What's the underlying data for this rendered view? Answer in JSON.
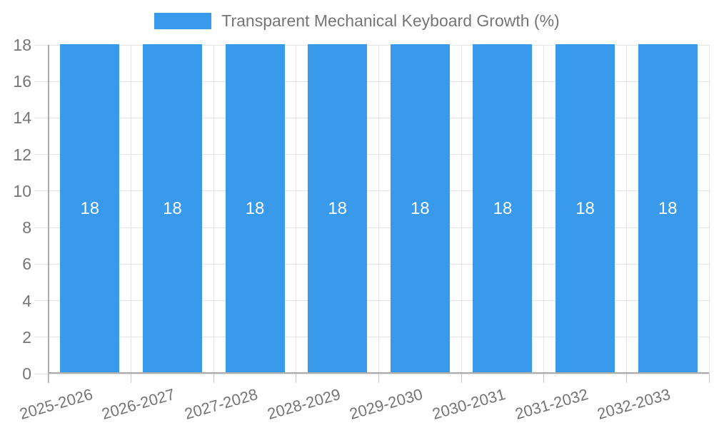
{
  "legend": {
    "label": "Transparent Mechanical Keyboard Growth (%)"
  },
  "chart_data": {
    "type": "bar",
    "title": "Transparent Mechanical Keyboard Growth (%)",
    "categories": [
      "2025-2026",
      "2026-2027",
      "2027-2028",
      "2028-2029",
      "2029-2030",
      "2030-2031",
      "2031-2032",
      "2032-2033"
    ],
    "series": [
      {
        "name": "Transparent Mechanical Keyboard Growth (%)",
        "values": [
          18,
          18,
          18,
          18,
          18,
          18,
          18,
          18
        ]
      }
    ],
    "value_labels": [
      "18",
      "18",
      "18",
      "18",
      "18",
      "18",
      "18",
      "18"
    ],
    "xlabel": "",
    "ylabel": "",
    "ylim": [
      0,
      18
    ],
    "yticks": [
      0,
      2,
      4,
      6,
      8,
      10,
      12,
      14,
      16,
      18
    ],
    "grid": true,
    "legend_position": "top",
    "colors": {
      "bar": "#3999EB",
      "bar_value_label": "#FFFFFF",
      "axis_line": "#ABABAB",
      "gridline": "#E4E4E4",
      "tick_label": "#757575"
    }
  }
}
